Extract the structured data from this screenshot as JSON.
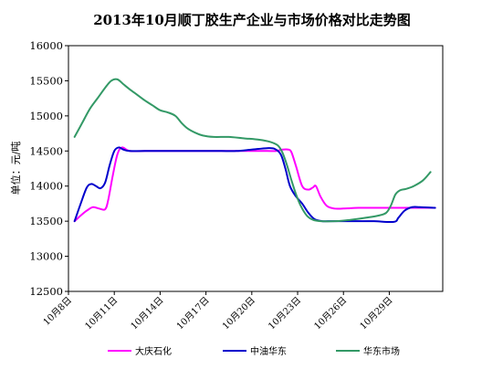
{
  "chart_data": {
    "type": "line",
    "title": "2013年10月顺丁胶生产企业与市场价格对比走势图",
    "xlabel": "",
    "ylabel": "单位：元/吨",
    "ylim": [
      12500,
      16000
    ],
    "yticks": [
      "12500",
      "13000",
      "13500",
      "14000",
      "14500",
      "15000",
      "15500",
      "16000"
    ],
    "xlim": [
      8,
      32.5
    ],
    "xticks": [
      {
        "x": 8,
        "label": "10月8日"
      },
      {
        "x": 11,
        "label": "10月11日"
      },
      {
        "x": 14,
        "label": "10月14日"
      },
      {
        "x": 17,
        "label": "10月17日"
      },
      {
        "x": 20,
        "label": "10月20日"
      },
      {
        "x": 23,
        "label": "10月23日"
      },
      {
        "x": 26,
        "label": "10月26日"
      },
      {
        "x": 29,
        "label": "10月29日"
      }
    ],
    "grid": false,
    "legend_position": "bottom",
    "series": [
      {
        "name": "大庆石化",
        "color": "#ff00ff",
        "points": [
          [
            8.4,
            13500
          ],
          [
            8.8,
            13580
          ],
          [
            9.2,
            13650
          ],
          [
            9.6,
            13700
          ],
          [
            10.0,
            13680
          ],
          [
            10.4,
            13670
          ],
          [
            10.6,
            13800
          ],
          [
            10.9,
            14150
          ],
          [
            11.2,
            14450
          ],
          [
            11.5,
            14550
          ],
          [
            12.0,
            14500
          ],
          [
            13,
            14500
          ],
          [
            14,
            14500
          ],
          [
            15,
            14500
          ],
          [
            16,
            14500
          ],
          [
            17,
            14500
          ],
          [
            18,
            14500
          ],
          [
            19,
            14500
          ],
          [
            20,
            14500
          ],
          [
            21,
            14500
          ],
          [
            21.6,
            14500
          ],
          [
            22.0,
            14520
          ],
          [
            22.4,
            14520
          ],
          [
            22.6,
            14480
          ],
          [
            22.9,
            14280
          ],
          [
            23.3,
            14000
          ],
          [
            23.7,
            13950
          ],
          [
            24.0,
            13980
          ],
          [
            24.2,
            14000
          ],
          [
            24.5,
            13850
          ],
          [
            24.9,
            13720
          ],
          [
            25.4,
            13680
          ],
          [
            26,
            13680
          ],
          [
            27,
            13690
          ],
          [
            28,
            13690
          ],
          [
            29,
            13690
          ],
          [
            30,
            13690
          ],
          [
            31,
            13690
          ],
          [
            32.0,
            13690
          ]
        ]
      },
      {
        "name": "中油华东",
        "color": "#0000cc",
        "points": [
          [
            8.4,
            13500
          ],
          [
            8.8,
            13750
          ],
          [
            9.2,
            13980
          ],
          [
            9.5,
            14030
          ],
          [
            9.8,
            14000
          ],
          [
            10.1,
            13970
          ],
          [
            10.4,
            14050
          ],
          [
            10.7,
            14300
          ],
          [
            11.0,
            14500
          ],
          [
            11.3,
            14550
          ],
          [
            11.6,
            14520
          ],
          [
            12,
            14500
          ],
          [
            13,
            14500
          ],
          [
            14,
            14500
          ],
          [
            15,
            14500
          ],
          [
            16,
            14500
          ],
          [
            17,
            14500
          ],
          [
            18,
            14500
          ],
          [
            19,
            14500
          ],
          [
            20,
            14520
          ],
          [
            21,
            14540
          ],
          [
            21.5,
            14530
          ],
          [
            21.9,
            14450
          ],
          [
            22.2,
            14250
          ],
          [
            22.5,
            14000
          ],
          [
            22.9,
            13850
          ],
          [
            23.3,
            13750
          ],
          [
            23.7,
            13620
          ],
          [
            24.1,
            13530
          ],
          [
            24.6,
            13500
          ],
          [
            25,
            13500
          ],
          [
            26,
            13500
          ],
          [
            27,
            13500
          ],
          [
            28,
            13500
          ],
          [
            29.3,
            13490
          ],
          [
            29.6,
            13550
          ],
          [
            30.0,
            13650
          ],
          [
            30.5,
            13700
          ],
          [
            31,
            13700
          ],
          [
            32.0,
            13690
          ]
        ]
      },
      {
        "name": "华东市场",
        "color": "#339966",
        "points": [
          [
            8.4,
            14700
          ],
          [
            8.9,
            14900
          ],
          [
            9.4,
            15100
          ],
          [
            9.9,
            15250
          ],
          [
            10.4,
            15400
          ],
          [
            10.8,
            15500
          ],
          [
            11.2,
            15520
          ],
          [
            11.6,
            15450
          ],
          [
            12.0,
            15380
          ],
          [
            12.5,
            15300
          ],
          [
            13.0,
            15220
          ],
          [
            13.5,
            15150
          ],
          [
            14.0,
            15080
          ],
          [
            14.5,
            15050
          ],
          [
            15.0,
            15000
          ],
          [
            15.4,
            14900
          ],
          [
            15.8,
            14820
          ],
          [
            16.3,
            14760
          ],
          [
            16.8,
            14720
          ],
          [
            17.5,
            14700
          ],
          [
            18.5,
            14700
          ],
          [
            19.5,
            14680
          ],
          [
            20.5,
            14660
          ],
          [
            21.2,
            14630
          ],
          [
            21.7,
            14580
          ],
          [
            22.0,
            14480
          ],
          [
            22.3,
            14300
          ],
          [
            22.6,
            14080
          ],
          [
            22.9,
            13880
          ],
          [
            23.2,
            13720
          ],
          [
            23.6,
            13580
          ],
          [
            24.0,
            13520
          ],
          [
            24.5,
            13500
          ],
          [
            25.5,
            13500
          ],
          [
            26.5,
            13520
          ],
          [
            27.5,
            13550
          ],
          [
            28.3,
            13580
          ],
          [
            28.8,
            13620
          ],
          [
            29.1,
            13720
          ],
          [
            29.4,
            13880
          ],
          [
            29.7,
            13940
          ],
          [
            30.1,
            13960
          ],
          [
            30.6,
            14000
          ],
          [
            31.2,
            14080
          ],
          [
            31.7,
            14200
          ]
        ]
      }
    ]
  }
}
